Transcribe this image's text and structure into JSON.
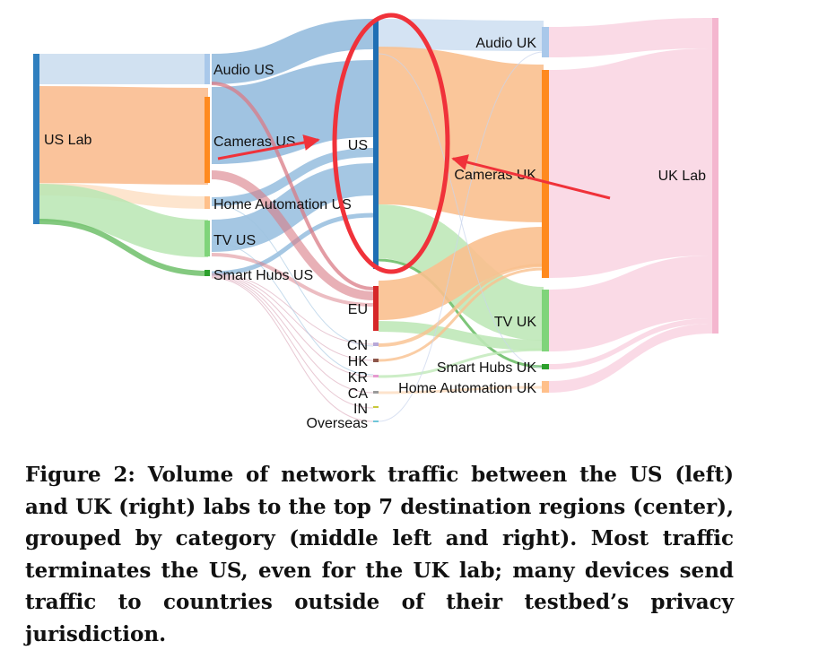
{
  "diagram": {
    "nodes": [
      {
        "id": "us_lab",
        "label": "US Lab",
        "color": "#2f7fbf"
      },
      {
        "id": "audio_us",
        "label": "Audio US",
        "color": "#a9c8ea"
      },
      {
        "id": "cameras_us",
        "label": "Cameras US",
        "color": "#ff8a1f"
      },
      {
        "id": "home_us",
        "label": "Home Automation US",
        "color": "#ffc08a"
      },
      {
        "id": "tv_us",
        "label": "TV US",
        "color": "#7fd47a"
      },
      {
        "id": "hubs_us",
        "label": "Smart Hubs US",
        "color": "#2ca02c"
      },
      {
        "id": "us",
        "label": "US",
        "color": "#1f6fb4"
      },
      {
        "id": "eu",
        "label": "EU",
        "color": "#d62728"
      },
      {
        "id": "cn",
        "label": "CN",
        "color": "#b7a8d8"
      },
      {
        "id": "hk",
        "label": "HK",
        "color": "#8c564b"
      },
      {
        "id": "kr",
        "label": "KR",
        "color": "#e59ad0"
      },
      {
        "id": "ca",
        "label": "CA",
        "color": "#9a9a9a"
      },
      {
        "id": "in",
        "label": "IN",
        "color": "#c8c83a"
      },
      {
        "id": "overseas",
        "label": "Overseas",
        "color": "#6fc6d8"
      },
      {
        "id": "audio_uk",
        "label": "Audio UK",
        "color": "#a9c8ea"
      },
      {
        "id": "cameras_uk",
        "label": "Cameras UK",
        "color": "#ff8a1f"
      },
      {
        "id": "tv_uk",
        "label": "TV UK",
        "color": "#7fd47a"
      },
      {
        "id": "hubs_uk",
        "label": "Smart Hubs UK",
        "color": "#2ca02c"
      },
      {
        "id": "home_uk",
        "label": "Home Automation UK",
        "color": "#ffc08a"
      },
      {
        "id": "uk_lab",
        "label": "UK Lab",
        "color": "#f4b6cf"
      }
    ],
    "links": [
      {
        "source": "us_lab",
        "target": "audio_us",
        "color": "#c9dcef"
      },
      {
        "source": "us_lab",
        "target": "cameras_us",
        "color": "#f9b98a"
      },
      {
        "source": "us_lab",
        "target": "home_us",
        "color": "#fde0c6"
      },
      {
        "source": "us_lab",
        "target": "tv_us",
        "color": "#b9e6b3"
      },
      {
        "source": "us_lab",
        "target": "hubs_us",
        "color": "#6fbf6a"
      },
      {
        "source": "audio_us",
        "target": "us",
        "color": "#8fb9dc"
      },
      {
        "source": "cameras_us",
        "target": "us",
        "color": "#8fb9dc"
      },
      {
        "source": "home_us",
        "target": "us",
        "color": "#8fb9dc"
      },
      {
        "source": "tv_us",
        "target": "us",
        "color": "#8fb9dc"
      },
      {
        "source": "hubs_us",
        "target": "us",
        "color": "#8fb9dc"
      },
      {
        "source": "audio_us",
        "target": "eu",
        "color": "#d97b86"
      },
      {
        "source": "cameras_us",
        "target": "eu",
        "color": "#d97b86"
      },
      {
        "source": "tv_us",
        "target": "eu",
        "color": "#d97b86"
      },
      {
        "source": "us",
        "target": "audio_uk",
        "color": "#cfe0f2"
      },
      {
        "source": "us",
        "target": "cameras_uk",
        "color": "#f9c08f"
      },
      {
        "source": "us",
        "target": "tv_uk",
        "color": "#bfe8b8"
      },
      {
        "source": "us",
        "target": "hubs_uk",
        "color": "#6fbf6a"
      },
      {
        "source": "eu",
        "target": "cameras_uk",
        "color": "#f9c08f"
      },
      {
        "source": "eu",
        "target": "tv_uk",
        "color": "#bfe8b8"
      },
      {
        "source": "cn",
        "target": "cameras_uk",
        "color": "#f9c08f"
      },
      {
        "source": "hk",
        "target": "cameras_uk",
        "color": "#f9c08f"
      },
      {
        "source": "kr",
        "target": "tv_uk",
        "color": "#bfe8b8"
      },
      {
        "source": "ca",
        "target": "home_uk",
        "color": "#fde0c6"
      },
      {
        "source": "audio_uk",
        "target": "uk_lab",
        "color": "#f9d4e2"
      },
      {
        "source": "cameras_uk",
        "target": "uk_lab",
        "color": "#f9d4e2"
      },
      {
        "source": "tv_uk",
        "target": "uk_lab",
        "color": "#f9d4e2"
      },
      {
        "source": "hubs_uk",
        "target": "uk_lab",
        "color": "#f9d4e2"
      },
      {
        "source": "home_uk",
        "target": "uk_lab",
        "color": "#f9d4e2"
      }
    ],
    "annotation_color": "#f0323a"
  },
  "caption": {
    "text": "Figure 2: Volume of network traffic between the US (left) and UK (right) labs to the top 7 destination regions (center), grouped by category (middle left and right). Most traffic terminates the US, even for the UK lab; many devices send traffic to countries outside of their testbed’s privacy jurisdiction."
  }
}
